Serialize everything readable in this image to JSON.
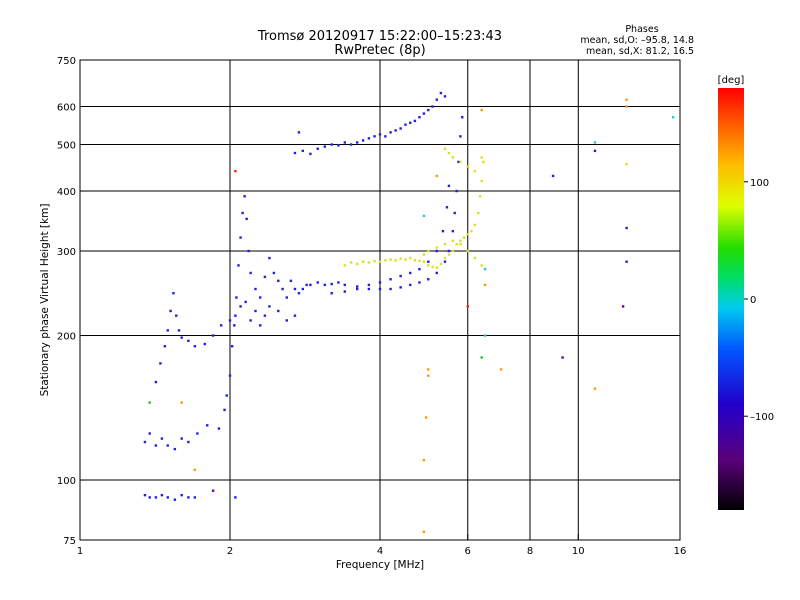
{
  "chart_data": {
    "type": "scatter",
    "title": "Tromsø 20120917 15:22:00–15:23:43",
    "subtitle": "RwPretec (8p)",
    "xlabel": "Frequency [MHz]",
    "ylabel": "Stationary phase Virtual Height [km]",
    "x_scale": "log",
    "y_scale": "log",
    "xlim": [
      1,
      16
    ],
    "ylim": [
      75,
      750
    ],
    "x_ticks": [
      1,
      2,
      4,
      6,
      8,
      10,
      16
    ],
    "x_tick_labels": [
      "1",
      "2",
      "4",
      "6",
      "8",
      "10",
      "16"
    ],
    "y_ticks": [
      75,
      100,
      200,
      300,
      400,
      500,
      600,
      750
    ],
    "y_tick_labels": [
      "75",
      "100",
      "200",
      "300",
      "400",
      "500",
      "600",
      "750"
    ],
    "x_gridlines": [
      2,
      4,
      6,
      8,
      10
    ],
    "y_gridlines": [
      100,
      200,
      300,
      400,
      500,
      600
    ],
    "grid": true,
    "stats": {
      "header": "Phases",
      "line1": "mean, sd,O: –95.8, 14.8",
      "line2": "mean, sd,X: 81.2, 16.5"
    },
    "colorbar": {
      "label": "[deg]",
      "min": -180,
      "max": 180,
      "ticks": [
        100,
        0,
        -100
      ],
      "tick_labels": [
        "100",
        "0",
        "–100"
      ],
      "colormap": "rainbow (black-purple-blue-cyan-green-yellow-red)"
    },
    "series": [
      {
        "color": "#2222dd",
        "phase": -100,
        "points": [
          [
            1.35,
            93
          ],
          [
            1.38,
            92
          ],
          [
            1.42,
            92
          ],
          [
            1.46,
            93
          ],
          [
            1.5,
            92
          ],
          [
            1.55,
            91
          ],
          [
            1.6,
            93
          ],
          [
            1.65,
            92
          ],
          [
            1.7,
            92
          ],
          [
            1.35,
            120
          ],
          [
            1.38,
            125
          ],
          [
            1.42,
            118
          ],
          [
            1.46,
            122
          ],
          [
            1.5,
            118
          ],
          [
            1.55,
            116
          ],
          [
            1.6,
            122
          ],
          [
            1.65,
            120
          ],
          [
            1.72,
            125
          ],
          [
            1.8,
            130
          ],
          [
            1.9,
            128
          ],
          [
            1.42,
            160
          ],
          [
            1.45,
            175
          ],
          [
            1.48,
            190
          ],
          [
            1.5,
            205
          ],
          [
            1.52,
            225
          ],
          [
            1.54,
            245
          ],
          [
            1.56,
            220
          ],
          [
            1.58,
            205
          ],
          [
            1.6,
            198
          ],
          [
            1.65,
            195
          ],
          [
            1.7,
            190
          ],
          [
            1.78,
            192
          ],
          [
            1.85,
            200
          ],
          [
            1.92,
            210
          ],
          [
            1.95,
            140
          ],
          [
            1.97,
            150
          ],
          [
            2.0,
            165
          ],
          [
            2.02,
            190
          ],
          [
            2.04,
            210
          ],
          [
            2.06,
            240
          ],
          [
            2.08,
            280
          ],
          [
            2.1,
            320
          ],
          [
            2.12,
            360
          ],
          [
            2.14,
            390
          ],
          [
            2.16,
            350
          ],
          [
            2.18,
            300
          ],
          [
            2.2,
            270
          ],
          [
            2.25,
            250
          ],
          [
            2.3,
            240
          ],
          [
            2.35,
            265
          ],
          [
            2.4,
            290
          ],
          [
            2.45,
            270
          ],
          [
            2.5,
            260
          ],
          [
            2.55,
            250
          ],
          [
            2.6,
            240
          ],
          [
            2.65,
            260
          ],
          [
            2.7,
            250
          ],
          [
            2.75,
            245
          ],
          [
            2.8,
            250
          ],
          [
            2.85,
            255
          ],
          [
            2.0,
            215
          ],
          [
            2.05,
            220
          ],
          [
            2.1,
            230
          ],
          [
            2.15,
            235
          ],
          [
            2.2,
            215
          ],
          [
            2.25,
            225
          ],
          [
            2.3,
            210
          ],
          [
            2.35,
            220
          ],
          [
            2.4,
            230
          ],
          [
            2.5,
            225
          ],
          [
            2.6,
            215
          ],
          [
            2.7,
            220
          ],
          [
            2.9,
            255
          ],
          [
            3.0,
            258
          ],
          [
            3.1,
            255
          ],
          [
            3.2,
            256
          ],
          [
            3.3,
            258
          ],
          [
            3.4,
            255
          ],
          [
            3.6,
            253
          ],
          [
            3.8,
            250
          ],
          [
            4.0,
            250
          ],
          [
            4.2,
            250
          ],
          [
            4.4,
            252
          ],
          [
            4.6,
            255
          ],
          [
            4.8,
            258
          ],
          [
            5.0,
            262
          ],
          [
            5.2,
            270
          ],
          [
            5.4,
            285
          ],
          [
            5.5,
            300
          ],
          [
            5.6,
            330
          ],
          [
            5.65,
            360
          ],
          [
            5.7,
            400
          ],
          [
            5.75,
            460
          ],
          [
            5.8,
            520
          ],
          [
            5.85,
            570
          ],
          [
            3.2,
            245
          ],
          [
            3.4,
            247
          ],
          [
            3.6,
            250
          ],
          [
            3.8,
            255
          ],
          [
            4.0,
            258
          ],
          [
            4.2,
            262
          ],
          [
            4.4,
            266
          ],
          [
            4.6,
            270
          ],
          [
            4.8,
            275
          ],
          [
            5.0,
            285
          ],
          [
            5.2,
            300
          ],
          [
            5.35,
            330
          ],
          [
            5.45,
            370
          ],
          [
            5.5,
            410
          ],
          [
            2.7,
            480
          ],
          [
            2.8,
            485
          ],
          [
            2.9,
            478
          ],
          [
            3.0,
            490
          ],
          [
            3.1,
            495
          ],
          [
            3.2,
            500
          ],
          [
            3.3,
            498
          ],
          [
            3.4,
            505
          ],
          [
            3.5,
            500
          ],
          [
            3.6,
            505
          ],
          [
            3.7,
            510
          ],
          [
            3.8,
            515
          ],
          [
            3.9,
            520
          ],
          [
            4.0,
            525
          ],
          [
            4.1,
            520
          ],
          [
            4.2,
            530
          ],
          [
            4.3,
            535
          ],
          [
            4.4,
            540
          ],
          [
            4.5,
            550
          ],
          [
            4.6,
            555
          ],
          [
            4.7,
            560
          ],
          [
            4.8,
            570
          ],
          [
            4.9,
            580
          ],
          [
            5.0,
            590
          ],
          [
            5.1,
            600
          ],
          [
            5.2,
            620
          ],
          [
            5.3,
            640
          ],
          [
            5.4,
            630
          ],
          [
            2.75,
            530
          ],
          [
            2.05,
            92
          ],
          [
            8.9,
            430
          ],
          [
            12.5,
            335
          ],
          [
            12.5,
            285
          ]
        ]
      },
      {
        "color": "#dddd22",
        "phase": 85,
        "points": [
          [
            3.4,
            280
          ],
          [
            3.5,
            284
          ],
          [
            3.6,
            282
          ],
          [
            3.7,
            285
          ],
          [
            3.8,
            284
          ],
          [
            3.9,
            286
          ],
          [
            4.0,
            285
          ],
          [
            4.1,
            287
          ],
          [
            4.2,
            288
          ],
          [
            4.3,
            287
          ],
          [
            4.4,
            289
          ],
          [
            4.5,
            288
          ],
          [
            4.6,
            290
          ],
          [
            4.7,
            287
          ],
          [
            4.8,
            286
          ],
          [
            4.9,
            285
          ],
          [
            5.0,
            280
          ],
          [
            5.1,
            278
          ],
          [
            5.2,
            277
          ],
          [
            5.3,
            282
          ],
          [
            5.4,
            290
          ],
          [
            5.5,
            295
          ],
          [
            5.6,
            300
          ],
          [
            5.7,
            310
          ],
          [
            5.8,
            315
          ],
          [
            5.9,
            320
          ],
          [
            6.0,
            325
          ],
          [
            6.1,
            330
          ],
          [
            6.2,
            340
          ],
          [
            6.3,
            360
          ],
          [
            6.35,
            390
          ],
          [
            6.4,
            420
          ],
          [
            6.45,
            460
          ],
          [
            4.9,
            295
          ],
          [
            5.0,
            300
          ],
          [
            5.2,
            305
          ],
          [
            5.4,
            310
          ],
          [
            5.6,
            315
          ],
          [
            5.8,
            310
          ],
          [
            6.0,
            300
          ],
          [
            6.2,
            290
          ],
          [
            6.4,
            280
          ],
          [
            5.4,
            490
          ],
          [
            5.5,
            480
          ],
          [
            5.6,
            470
          ],
          [
            5.8,
            460
          ],
          [
            6.0,
            450
          ],
          [
            6.2,
            440
          ],
          [
            6.4,
            470
          ],
          [
            12.5,
            455
          ]
        ]
      },
      {
        "color": "#ff9900",
        "phase": 130,
        "points": [
          [
            4.9,
            78
          ],
          [
            4.9,
            110
          ],
          [
            4.95,
            135
          ],
          [
            5.0,
            170
          ],
          [
            5.0,
            165
          ],
          [
            6.4,
            590
          ],
          [
            6.5,
            255
          ],
          [
            7.0,
            170
          ],
          [
            10.8,
            155
          ],
          [
            12.5,
            620
          ],
          [
            12.5,
            600
          ],
          [
            1.6,
            145
          ],
          [
            1.7,
            105
          ],
          [
            5.2,
            430
          ]
        ]
      },
      {
        "color": "#22cccc",
        "phase": 20,
        "points": [
          [
            6.5,
            200
          ],
          [
            10.8,
            505
          ],
          [
            15.5,
            570
          ],
          [
            6.5,
            275
          ],
          [
            4.9,
            355
          ]
        ]
      },
      {
        "color": "#22bb22",
        "phase": 0,
        "points": [
          [
            6.4,
            180
          ],
          [
            1.38,
            145
          ]
        ]
      },
      {
        "color": "#6600aa",
        "phase": -140,
        "points": [
          [
            9.3,
            180
          ],
          [
            12.3,
            230
          ],
          [
            10.8,
            485
          ],
          [
            1.85,
            95
          ]
        ]
      },
      {
        "color": "#ff2200",
        "phase": 170,
        "points": [
          [
            6.0,
            230
          ],
          [
            2.05,
            440
          ]
        ]
      }
    ]
  }
}
